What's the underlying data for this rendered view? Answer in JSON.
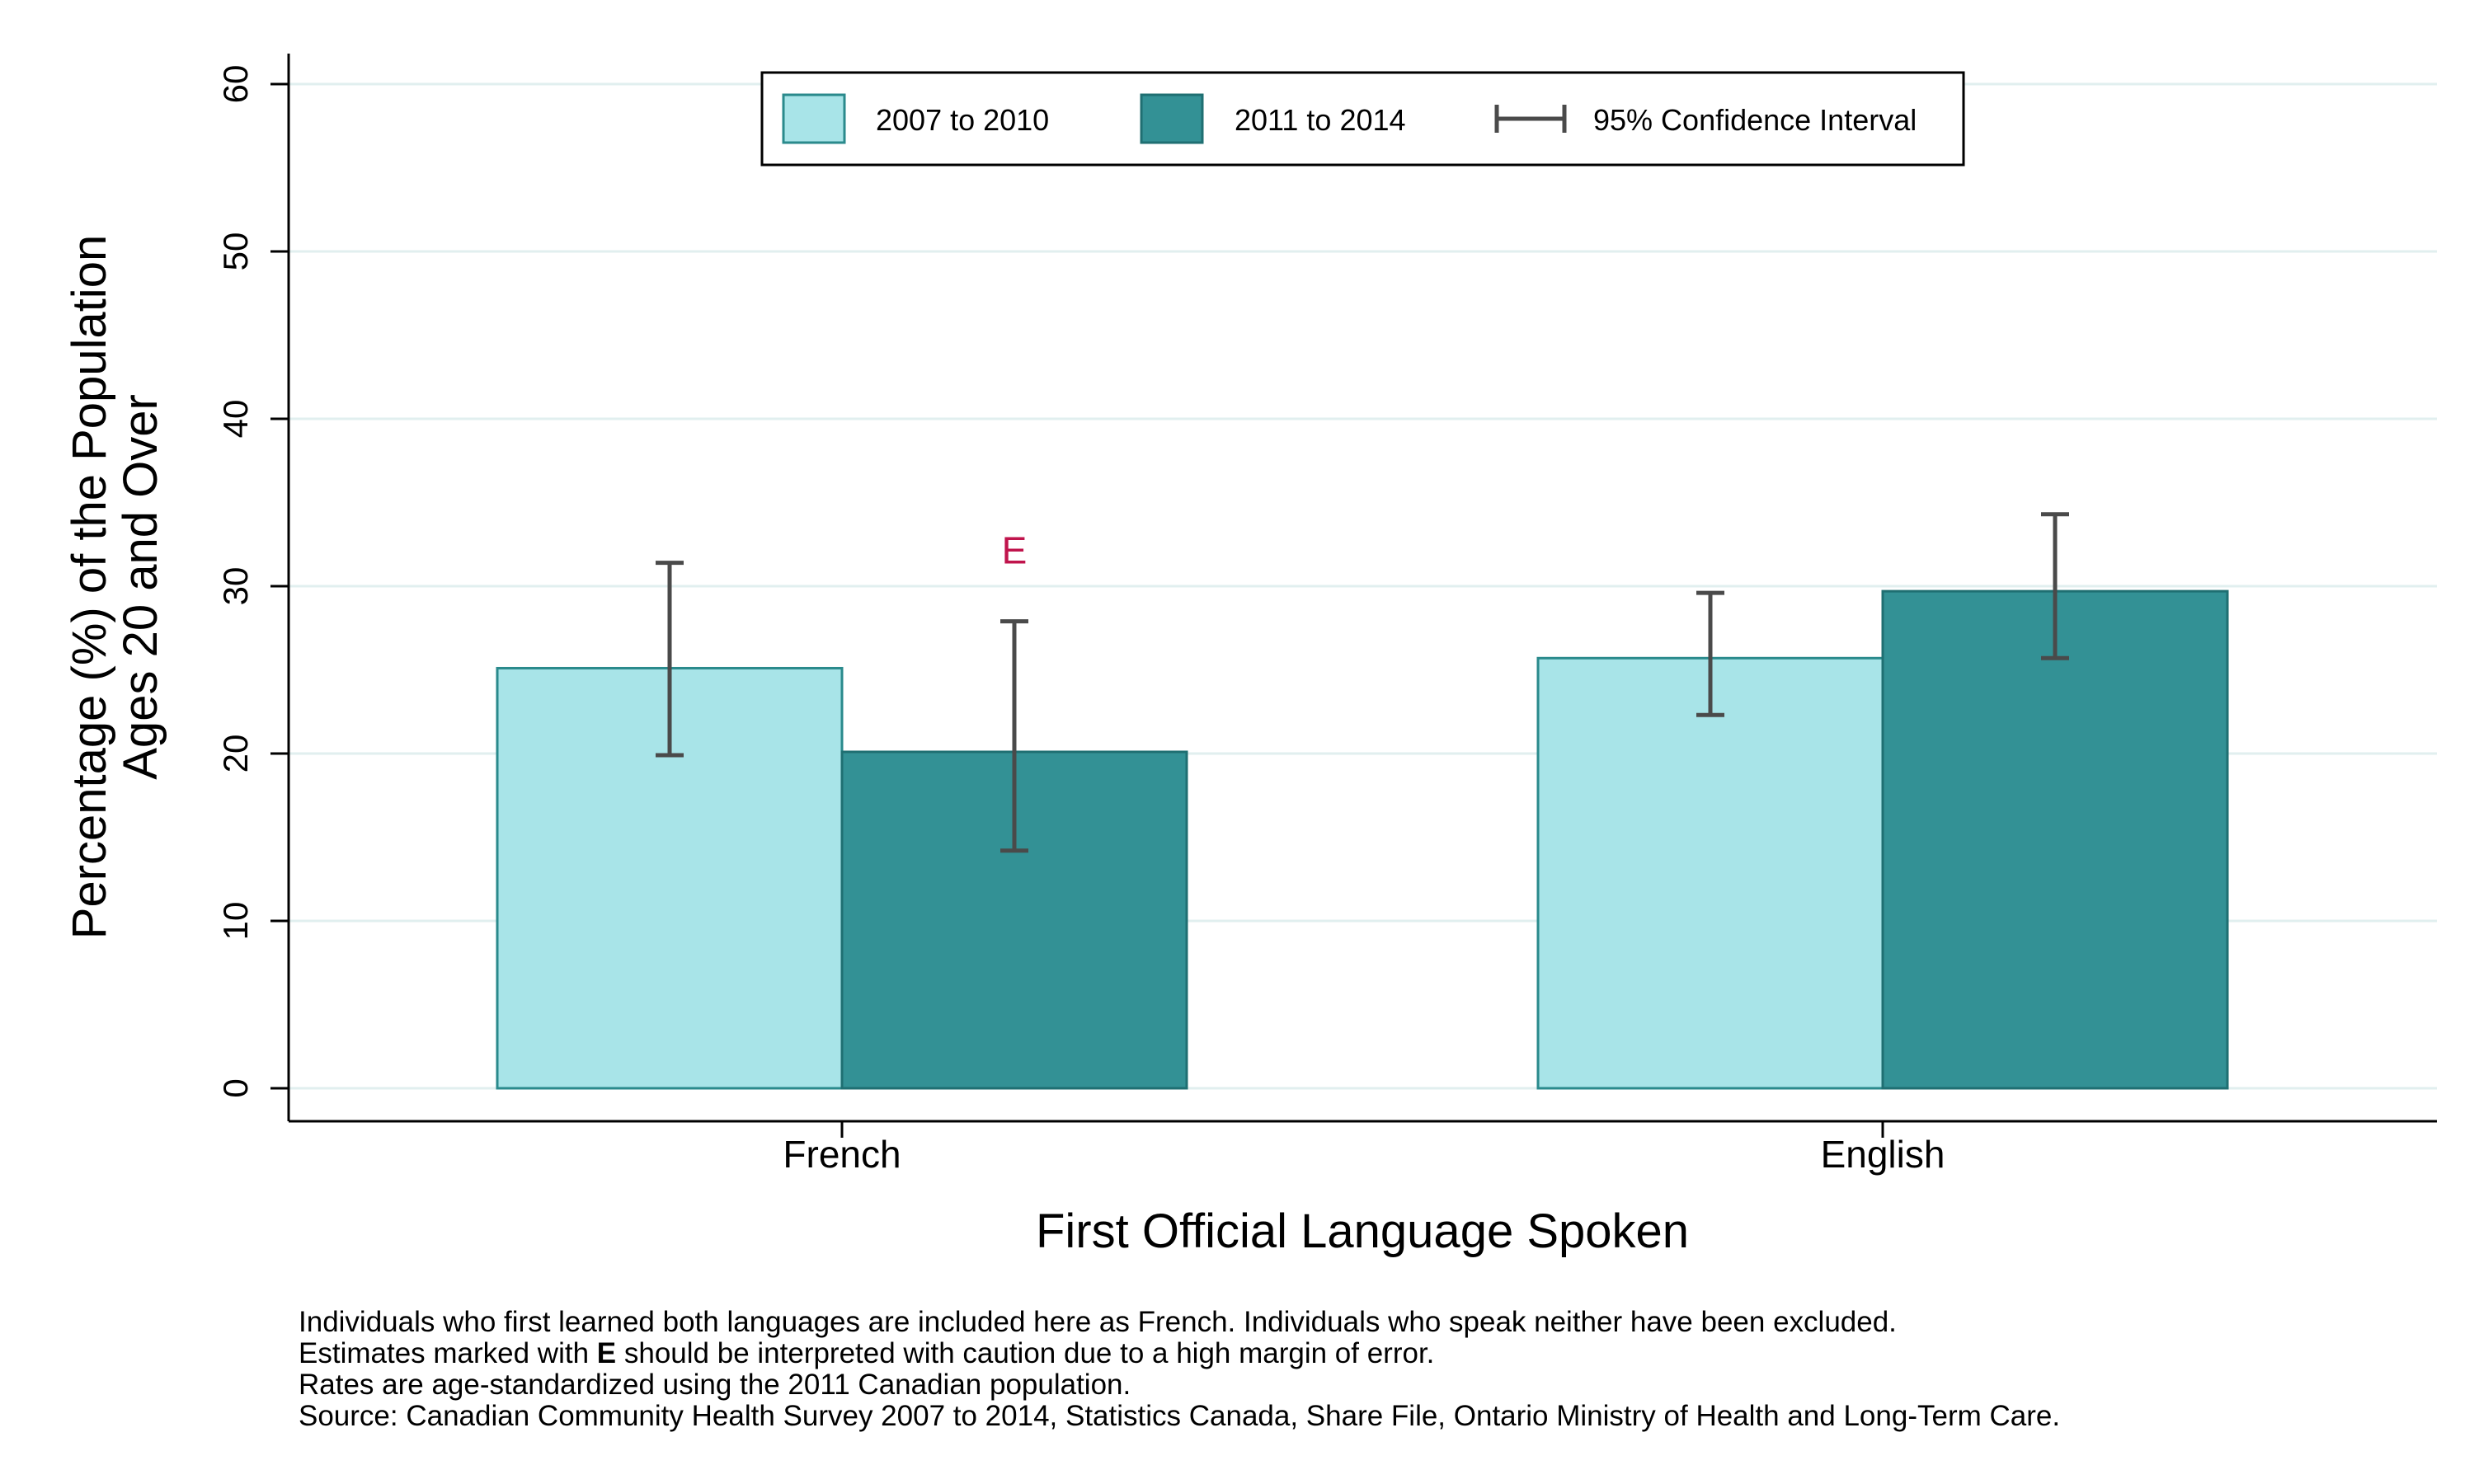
{
  "chart_data": {
    "type": "bar",
    "categories": [
      "French",
      "English"
    ],
    "series": [
      {
        "name": "2007 to 2010",
        "color": "#a8e4e8",
        "stroke": "#2a8a8c",
        "values": [
          25.1,
          25.7
        ],
        "ci_low": [
          19.9,
          22.3
        ],
        "ci_high": [
          31.4,
          29.6
        ],
        "flags": [
          "",
          ""
        ]
      },
      {
        "name": "2011 to 2014",
        "color": "#339195",
        "stroke": "#1f6f72",
        "values": [
          20.1,
          29.7
        ],
        "ci_low": [
          14.2,
          25.7
        ],
        "ci_high": [
          27.9,
          34.3
        ],
        "flags": [
          "E",
          ""
        ]
      }
    ],
    "ci_legend": "95% Confidence Interval",
    "xlabel": "First Official Language Spoken",
    "ylabel_line1": "Percentage (%) of the Population",
    "ylabel_line2": "Ages 20 and Over",
    "yticks": [
      0,
      10,
      20,
      30,
      40,
      50,
      60
    ],
    "ylim": [
      0,
      60
    ],
    "grid": true,
    "legend_position": "top",
    "flag_color": "#c0144c",
    "ci_color": "#4a4a4a"
  },
  "notes": {
    "line1": "Individuals who first learned both languages are included here as French.  Individuals who speak neither have been excluded.",
    "line2_before": "Estimates marked with ",
    "line2_bold": "E",
    "line2_after": " should be interpreted with caution due to a high margin of error.",
    "line3": "Rates are age-standardized using the 2011 Canadian population.",
    "line4": "Source: Canadian Community Health Survey 2007 to 2014, Statistics Canada, Share File, Ontario Ministry of Health and Long-Term Care."
  }
}
